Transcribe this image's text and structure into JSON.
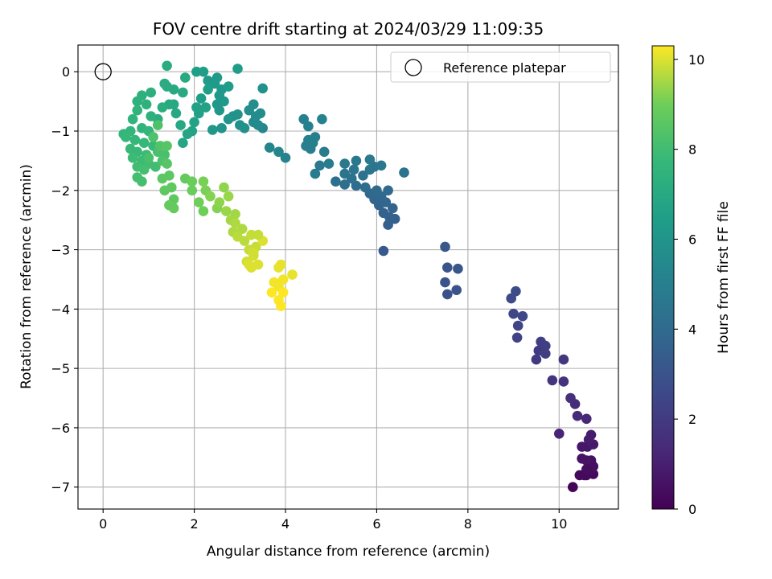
{
  "chart_data": {
    "type": "scatter",
    "title": "FOV centre drift starting at 2024/03/29 11:09:35",
    "xlabel": "Angular distance from reference (arcmin)",
    "ylabel": "Rotation from reference (arcmin)",
    "xlim": [
      -0.55,
      11.3
    ],
    "ylim": [
      -7.37,
      0.45
    ],
    "xticks": [
      0,
      2,
      4,
      6,
      8,
      10
    ],
    "yticks": [
      0,
      -1,
      -2,
      -3,
      -4,
      -5,
      -6,
      -7
    ],
    "grid": true,
    "legend": {
      "placement": "top-right",
      "entries": [
        "Reference platepar"
      ]
    },
    "reference_point": {
      "x": 0,
      "y": 0,
      "marker": "open-circle"
    },
    "colorbar": {
      "label": "Hours from first FF file",
      "range": [
        0,
        10.3
      ],
      "ticks": [
        0,
        2,
        4,
        6,
        8,
        10
      ],
      "colormap": "viridis"
    },
    "points": [
      [
        10.3,
        -7.0,
        0.1
      ],
      [
        10.6,
        -6.8,
        0.3
      ],
      [
        10.75,
        -6.78,
        0.3
      ],
      [
        10.7,
        -6.7,
        0.4
      ],
      [
        10.75,
        -6.65,
        0.5
      ],
      [
        10.7,
        -6.55,
        0.5
      ],
      [
        10.6,
        -6.55,
        0.6
      ],
      [
        10.5,
        -6.52,
        0.6
      ],
      [
        10.5,
        -6.32,
        0.7
      ],
      [
        10.62,
        -6.32,
        0.7
      ],
      [
        10.75,
        -6.28,
        0.8
      ],
      [
        10.65,
        -6.2,
        0.9
      ],
      [
        10.7,
        -6.12,
        0.9
      ],
      [
        10.45,
        -6.8,
        0.2
      ],
      [
        10.55,
        -6.8,
        0.3
      ],
      [
        10.6,
        -6.7,
        0.4
      ],
      [
        10.0,
        -6.1,
        1.2
      ],
      [
        10.6,
        -5.85,
        1.3
      ],
      [
        10.4,
        -5.8,
        1.4
      ],
      [
        10.35,
        -5.6,
        1.5
      ],
      [
        10.25,
        -5.5,
        1.6
      ],
      [
        10.1,
        -5.22,
        1.7
      ],
      [
        9.85,
        -5.2,
        1.8
      ],
      [
        10.1,
        -4.85,
        1.9
      ],
      [
        9.5,
        -4.85,
        2.0
      ],
      [
        9.55,
        -4.7,
        2.0
      ],
      [
        9.7,
        -4.75,
        2.1
      ],
      [
        9.6,
        -4.55,
        2.2
      ],
      [
        9.7,
        -4.62,
        2.2
      ],
      [
        9.08,
        -4.48,
        2.3
      ],
      [
        9.1,
        -4.28,
        2.4
      ],
      [
        9.0,
        -4.08,
        2.5
      ],
      [
        9.2,
        -4.12,
        2.5
      ],
      [
        8.95,
        -3.82,
        2.6
      ],
      [
        9.05,
        -3.7,
        2.7
      ],
      [
        7.55,
        -3.75,
        2.9
      ],
      [
        7.5,
        -3.55,
        3.0
      ],
      [
        7.75,
        -3.68,
        3.0
      ],
      [
        7.55,
        -3.3,
        3.1
      ],
      [
        7.78,
        -3.32,
        3.1
      ],
      [
        7.5,
        -2.95,
        3.2
      ],
      [
        6.15,
        -3.02,
        3.3
      ],
      [
        6.25,
        -2.58,
        3.5
      ],
      [
        6.4,
        -2.48,
        3.5
      ],
      [
        6.28,
        -2.45,
        3.6
      ],
      [
        6.15,
        -2.38,
        3.6
      ],
      [
        6.35,
        -2.3,
        3.7
      ],
      [
        6.05,
        -2.25,
        3.7
      ],
      [
        6.2,
        -2.2,
        3.8
      ],
      [
        5.95,
        -2.15,
        3.8
      ],
      [
        6.1,
        -2.1,
        3.9
      ],
      [
        5.85,
        -2.05,
        3.9
      ],
      [
        6.0,
        -2.0,
        4.0
      ],
      [
        6.25,
        -2.0,
        4.0
      ],
      [
        5.75,
        -1.95,
        4.1
      ],
      [
        5.55,
        -1.92,
        4.1
      ],
      [
        5.3,
        -1.9,
        4.2
      ],
      [
        5.1,
        -1.85,
        4.2
      ],
      [
        5.45,
        -1.8,
        4.3
      ],
      [
        5.7,
        -1.75,
        4.3
      ],
      [
        6.6,
        -1.7,
        4.4
      ],
      [
        5.3,
        -1.72,
        4.4
      ],
      [
        5.5,
        -1.65,
        4.5
      ],
      [
        5.85,
        -1.65,
        4.5
      ],
      [
        5.95,
        -1.6,
        4.5
      ],
      [
        6.1,
        -1.58,
        4.6
      ],
      [
        5.3,
        -1.55,
        4.6
      ],
      [
        5.55,
        -1.5,
        4.6
      ],
      [
        5.85,
        -1.48,
        4.7
      ],
      [
        4.75,
        -1.58,
        4.7
      ],
      [
        4.95,
        -1.55,
        4.8
      ],
      [
        4.65,
        -1.72,
        4.8
      ],
      [
        4.85,
        -1.35,
        4.8
      ],
      [
        4.55,
        -1.3,
        4.9
      ],
      [
        4.45,
        -1.25,
        4.9
      ],
      [
        4.6,
        -1.2,
        4.9
      ],
      [
        4.5,
        -1.15,
        5.0
      ],
      [
        4.65,
        -1.1,
        5.0
      ],
      [
        4.4,
        -0.8,
        5.1
      ],
      [
        4.5,
        -0.92,
        5.1
      ],
      [
        4.8,
        -0.8,
        5.2
      ],
      [
        4.0,
        -1.45,
        5.2
      ],
      [
        3.85,
        -1.35,
        5.3
      ],
      [
        3.65,
        -1.28,
        5.3
      ],
      [
        3.5,
        -0.95,
        5.4
      ],
      [
        3.4,
        -0.9,
        5.5
      ],
      [
        3.3,
        -0.85,
        5.5
      ],
      [
        3.35,
        -0.75,
        5.6
      ],
      [
        3.45,
        -0.7,
        5.6
      ],
      [
        3.2,
        -0.65,
        5.7
      ],
      [
        3.3,
        -0.55,
        5.7
      ],
      [
        3.5,
        -0.28,
        5.8
      ],
      [
        3.0,
        -0.9,
        5.8
      ],
      [
        3.1,
        -0.95,
        5.8
      ],
      [
        2.85,
        -0.75,
        5.9
      ],
      [
        2.95,
        -0.72,
        5.9
      ],
      [
        2.75,
        -0.8,
        6.0
      ],
      [
        2.6,
        -0.95,
        6.0
      ],
      [
        2.4,
        -0.98,
        6.1
      ],
      [
        2.55,
        -0.65,
        6.1
      ],
      [
        2.5,
        -0.55,
        6.1
      ],
      [
        2.65,
        -0.5,
        6.2
      ],
      [
        2.55,
        -0.4,
        6.2
      ],
      [
        2.6,
        -0.3,
        6.2
      ],
      [
        2.45,
        -0.2,
        6.3
      ],
      [
        2.5,
        -0.1,
        6.3
      ],
      [
        2.3,
        -0.15,
        6.3
      ],
      [
        2.95,
        0.05,
        6.4
      ],
      [
        2.75,
        -0.25,
        6.4
      ],
      [
        2.2,
        0.0,
        6.4
      ],
      [
        2.05,
        0.0,
        6.5
      ],
      [
        2.3,
        -0.3,
        6.5
      ],
      [
        2.15,
        -0.45,
        6.5
      ],
      [
        2.25,
        -0.6,
        6.6
      ],
      [
        2.05,
        -0.6,
        6.6
      ],
      [
        2.1,
        -0.7,
        6.6
      ],
      [
        2.0,
        -0.85,
        6.7
      ],
      [
        1.95,
        -1.0,
        6.7
      ],
      [
        1.85,
        -1.05,
        6.8
      ],
      [
        1.75,
        -1.2,
        6.8
      ],
      [
        1.7,
        -0.9,
        6.9
      ],
      [
        1.6,
        -0.7,
        6.9
      ],
      [
        1.55,
        -0.55,
        6.9
      ],
      [
        1.45,
        -0.55,
        7.0
      ],
      [
        1.55,
        -0.3,
        7.0
      ],
      [
        1.75,
        -0.35,
        7.0
      ],
      [
        1.8,
        -0.1,
        7.0
      ],
      [
        1.4,
        -0.25,
        7.1
      ],
      [
        1.35,
        -0.2,
        7.1
      ],
      [
        1.4,
        0.1,
        7.1
      ],
      [
        1.3,
        -0.6,
        7.2
      ],
      [
        1.2,
        -0.8,
        7.2
      ],
      [
        1.05,
        -0.35,
        7.3
      ],
      [
        0.85,
        -0.4,
        7.3
      ],
      [
        0.75,
        -0.5,
        7.4
      ],
      [
        0.95,
        -0.55,
        7.4
      ],
      [
        1.05,
        -0.75,
        7.4
      ],
      [
        0.75,
        -0.65,
        7.5
      ],
      [
        0.65,
        -0.8,
        7.5
      ],
      [
        0.85,
        -0.95,
        7.5
      ],
      [
        1.0,
        -1.0,
        7.6
      ],
      [
        0.6,
        -1.0,
        7.6
      ],
      [
        0.45,
        -1.05,
        7.6
      ],
      [
        0.5,
        -1.1,
        7.7
      ],
      [
        0.7,
        -1.15,
        7.7
      ],
      [
        0.9,
        -1.2,
        7.7
      ],
      [
        1.1,
        -1.25,
        7.8
      ],
      [
        0.6,
        -1.3,
        7.8
      ],
      [
        0.75,
        -1.35,
        7.8
      ],
      [
        0.95,
        -1.4,
        7.9
      ],
      [
        0.65,
        -1.45,
        7.9
      ],
      [
        0.85,
        -1.5,
        7.9
      ],
      [
        1.0,
        -1.55,
        8.0
      ],
      [
        1.15,
        -1.6,
        8.0
      ],
      [
        0.75,
        -1.6,
        8.0
      ],
      [
        0.9,
        -1.65,
        8.1
      ],
      [
        0.75,
        -1.78,
        8.1
      ],
      [
        0.85,
        -1.85,
        8.1
      ],
      [
        1.0,
        -1.45,
        8.2
      ],
      [
        1.2,
        -1.35,
        8.2
      ],
      [
        1.35,
        -1.4,
        8.2
      ],
      [
        1.1,
        -1.1,
        8.3
      ],
      [
        1.2,
        -0.9,
        8.3
      ],
      [
        1.3,
        -1.5,
        8.3
      ],
      [
        1.25,
        -1.25,
        8.4
      ],
      [
        1.4,
        -1.25,
        8.5
      ],
      [
        1.4,
        -1.55,
        8.5
      ],
      [
        1.45,
        -1.75,
        8.6
      ],
      [
        1.3,
        -1.8,
        8.6
      ],
      [
        1.5,
        -1.95,
        8.7
      ],
      [
        1.35,
        -2.0,
        8.7
      ],
      [
        1.55,
        -2.15,
        8.7
      ],
      [
        1.45,
        -2.25,
        8.8
      ],
      [
        1.55,
        -2.3,
        8.8
      ],
      [
        1.8,
        -1.8,
        8.8
      ],
      [
        1.95,
        -1.85,
        8.9
      ],
      [
        1.95,
        -2.0,
        8.9
      ],
      [
        2.1,
        -2.2,
        9.0
      ],
      [
        2.2,
        -2.35,
        9.0
      ],
      [
        2.25,
        -2.0,
        9.1
      ],
      [
        2.2,
        -1.85,
        9.1
      ],
      [
        2.35,
        -2.1,
        9.2
      ],
      [
        2.5,
        -2.3,
        9.2
      ],
      [
        2.55,
        -2.2,
        9.3
      ],
      [
        2.65,
        -1.95,
        9.3
      ],
      [
        2.75,
        -2.1,
        9.4
      ],
      [
        2.7,
        -2.35,
        9.4
      ],
      [
        2.9,
        -2.4,
        9.5
      ],
      [
        2.8,
        -2.5,
        9.5
      ],
      [
        2.9,
        -2.55,
        9.6
      ],
      [
        3.05,
        -2.65,
        9.6
      ],
      [
        2.85,
        -2.7,
        9.6
      ],
      [
        2.95,
        -2.78,
        9.7
      ],
      [
        3.1,
        -2.85,
        9.7
      ],
      [
        3.25,
        -2.75,
        9.8
      ],
      [
        3.2,
        -3.0,
        9.8
      ],
      [
        3.35,
        -2.95,
        9.8
      ],
      [
        3.3,
        -3.1,
        9.9
      ],
      [
        3.15,
        -3.2,
        9.9
      ],
      [
        3.4,
        -3.25,
        10.0
      ],
      [
        3.25,
        -3.3,
        10.0
      ],
      [
        3.5,
        -2.85,
        10.0
      ],
      [
        3.85,
        -3.3,
        10.1
      ],
      [
        3.9,
        -3.25,
        10.1
      ],
      [
        4.15,
        -3.42,
        10.1
      ],
      [
        3.95,
        -3.5,
        10.2
      ],
      [
        3.75,
        -3.55,
        10.2
      ],
      [
        3.85,
        -3.62,
        10.2
      ],
      [
        3.95,
        -3.72,
        10.3
      ],
      [
        3.85,
        -3.85,
        10.3
      ],
      [
        3.9,
        -3.95,
        10.3
      ],
      [
        3.7,
        -3.72,
        10.3
      ],
      [
        3.2,
        -3.25,
        10.0
      ],
      [
        3.3,
        -3.05,
        9.9
      ],
      [
        3.4,
        -2.75,
        9.8
      ]
    ]
  }
}
